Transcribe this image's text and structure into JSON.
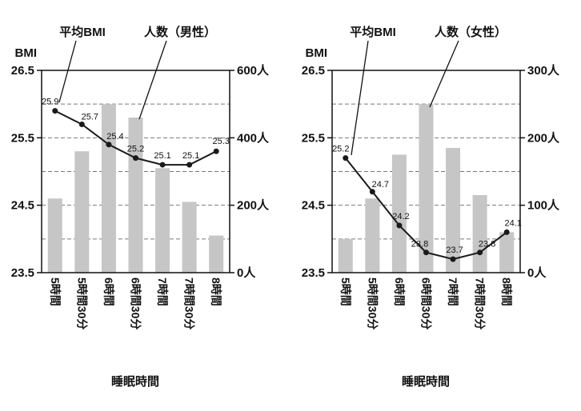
{
  "colors": {
    "bar_fill": "#c6c6c6",
    "line_color": "#1a1a1a",
    "frame_color": "#111111",
    "grid_color": "#777777"
  },
  "chart_data": [
    {
      "type": "bar+line",
      "panel": "male",
      "xlabel": "睡眠時間",
      "categories": [
        "5時間",
        "5時間30分",
        "6時間",
        "6時間30分",
        "7時間",
        "7時間30分",
        "8時間"
      ],
      "left_axis": {
        "label": "BMI",
        "min": 23.5,
        "max": 26.5,
        "tick_labels": [
          "26.5",
          "25.5",
          "24.5",
          "23.5"
        ],
        "grid_step": 0.5
      },
      "right_axis": {
        "min": 0,
        "max": 600,
        "tick_labels": [
          "600人",
          "400人",
          "200人",
          "0人"
        ]
      },
      "series": [
        {
          "name": "平均BMI",
          "type": "line",
          "axis": "left",
          "values": [
            25.9,
            25.7,
            25.4,
            25.2,
            25.1,
            25.1,
            25.3
          ],
          "labels": [
            "25.9",
            "25.7",
            "25.4",
            "25.2",
            "25.1",
            "25.1",
            "25.3"
          ]
        },
        {
          "name": "人数（男性）",
          "type": "bar",
          "axis": "right",
          "values": [
            220,
            360,
            500,
            460,
            310,
            210,
            110
          ]
        }
      ],
      "legend_position": "top-annotations",
      "grid": "horizontal-dashed"
    },
    {
      "type": "bar+line",
      "panel": "female",
      "xlabel": "睡眠時間",
      "categories": [
        "5時間",
        "5時間30分",
        "6時間",
        "6時間30分",
        "7時間",
        "7時間30分",
        "8時間"
      ],
      "left_axis": {
        "label": "BMI",
        "min": 23.5,
        "max": 26.5,
        "tick_labels": [
          "26.5",
          "25.5",
          "24.5",
          "23.5"
        ],
        "grid_step": 0.5
      },
      "right_axis": {
        "min": 0,
        "max": 300,
        "tick_labels": [
          "300人",
          "200人",
          "100人",
          "0人"
        ]
      },
      "series": [
        {
          "name": "平均BMI",
          "type": "line",
          "axis": "left",
          "values": [
            25.2,
            24.7,
            24.2,
            23.8,
            23.7,
            23.8,
            24.1
          ],
          "labels": [
            "25.2",
            "24.7",
            "24.2",
            "23.8",
            "23.7",
            "23.8",
            "24.1"
          ]
        },
        {
          "name": "人数（女性）",
          "type": "bar",
          "axis": "right",
          "values": [
            50,
            110,
            175,
            250,
            185,
            115,
            60
          ]
        }
      ],
      "legend_position": "top-annotations",
      "grid": "horizontal-dashed"
    }
  ]
}
